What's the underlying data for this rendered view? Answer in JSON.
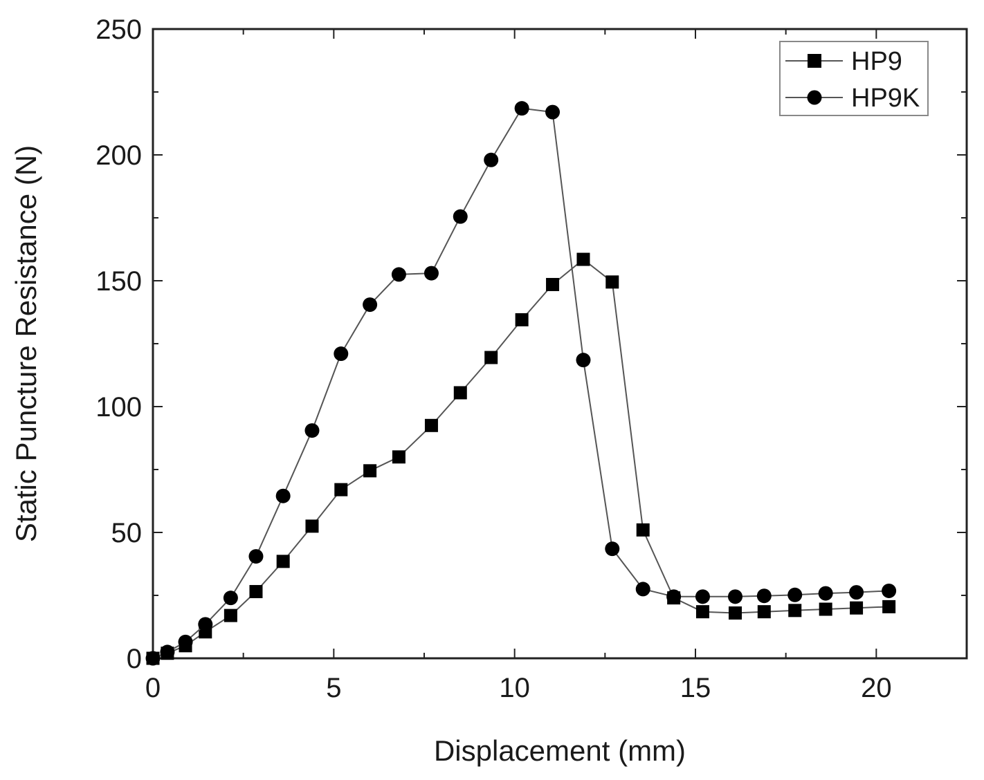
{
  "chart_data": {
    "type": "line",
    "title": "",
    "xlabel": "Displacement (mm)",
    "ylabel": "Static Puncture Resistance (N)",
    "xlim": [
      0,
      22.5
    ],
    "ylim": [
      0,
      250
    ],
    "xticks": [
      "0",
      "5",
      "10",
      "15",
      "20"
    ],
    "yticks": [
      "0",
      "50",
      "100",
      "150",
      "200",
      "250"
    ],
    "grid": false,
    "legend": "top-right",
    "series": [
      {
        "name": "HP9",
        "marker": "square",
        "x": [
          0,
          0.4,
          0.9,
          1.45,
          2.15,
          2.85,
          3.6,
          4.4,
          5.2,
          6.0,
          6.8,
          7.7,
          8.5,
          9.35,
          10.2,
          11.05,
          11.9,
          12.7,
          13.55,
          14.4,
          15.2,
          16.1,
          16.9,
          17.75,
          18.6,
          19.45,
          20.35
        ],
        "y": [
          0,
          2,
          5,
          10.5,
          17,
          26.5,
          38.5,
          52.5,
          67,
          74.5,
          80,
          92.5,
          105.5,
          119.5,
          134.5,
          148.5,
          158.5,
          149.5,
          51,
          24,
          18.5,
          18,
          18.5,
          19,
          19.5,
          20,
          20.5
        ]
      },
      {
        "name": "HP9K",
        "marker": "circle",
        "x": [
          0,
          0.4,
          0.9,
          1.45,
          2.15,
          2.85,
          3.6,
          4.4,
          5.2,
          6.0,
          6.8,
          7.7,
          8.5,
          9.35,
          10.2,
          11.05,
          11.9,
          12.7,
          13.55,
          14.4,
          15.2,
          16.1,
          16.9,
          17.75,
          18.6,
          19.45,
          20.35
        ],
        "y": [
          0,
          2.5,
          6.5,
          13.5,
          24,
          40.5,
          64.5,
          90.5,
          121,
          140.5,
          152.5,
          153,
          175.5,
          198,
          218.5,
          217,
          118.5,
          43.5,
          27.5,
          24.5,
          24.5,
          24.5,
          24.8,
          25.2,
          25.8,
          26.2,
          26.8
        ]
      }
    ]
  }
}
